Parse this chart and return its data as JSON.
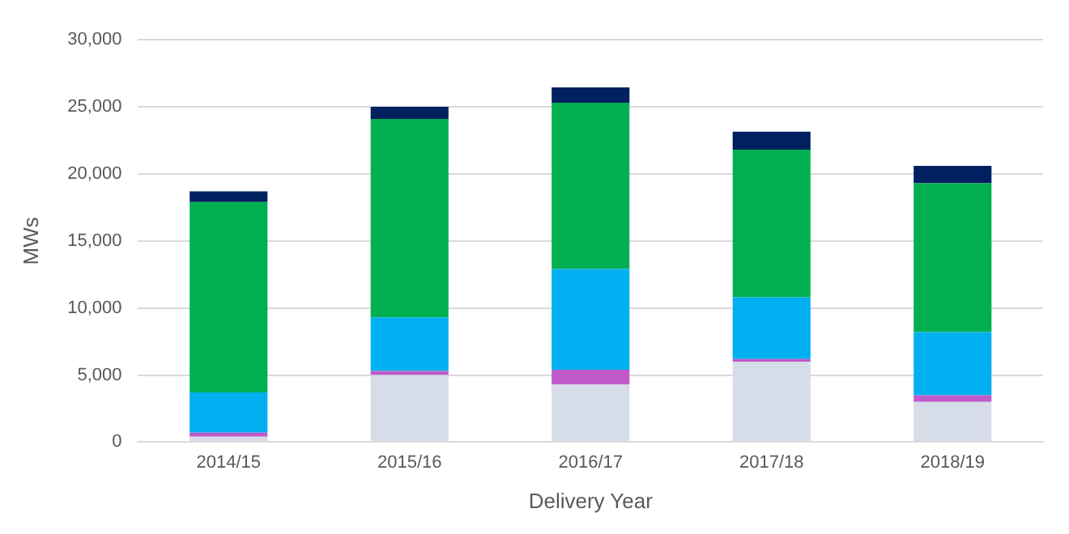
{
  "chart_data": {
    "type": "bar",
    "stacked": true,
    "xlabel": "Delivery Year",
    "ylabel": "MWs",
    "categories": [
      "2014/15",
      "2015/16",
      "2016/17",
      "2017/18",
      "2018/19"
    ],
    "series": [
      {
        "color": "#d6dce8",
        "values": [
          400,
          5000,
          4300,
          6000,
          3000
        ]
      },
      {
        "color": "#bf5ac8",
        "values": [
          300,
          300,
          1100,
          200,
          500
        ]
      },
      {
        "color": "#00b0f0",
        "values": [
          3000,
          4000,
          7500,
          4600,
          4700
        ]
      },
      {
        "color": "#00b050",
        "values": [
          14200,
          14800,
          12400,
          11000,
          11100
        ]
      },
      {
        "color": "#002060",
        "values": [
          800,
          900,
          1150,
          1350,
          1300
        ]
      }
    ],
    "ylim": [
      0,
      30000
    ],
    "yticks": [
      0,
      {
        "value": 5000,
        "label": "5,000"
      },
      {
        "value": 10000,
        "label": "10,000"
      },
      {
        "value": 15000,
        "label": "15,000"
      },
      {
        "value": 20000,
        "label": "20,000"
      },
      {
        "value": 25000,
        "label": "25,000"
      },
      {
        "value": 30000,
        "label": "30,000"
      }
    ],
    "grid": "y",
    "legend": false
  }
}
